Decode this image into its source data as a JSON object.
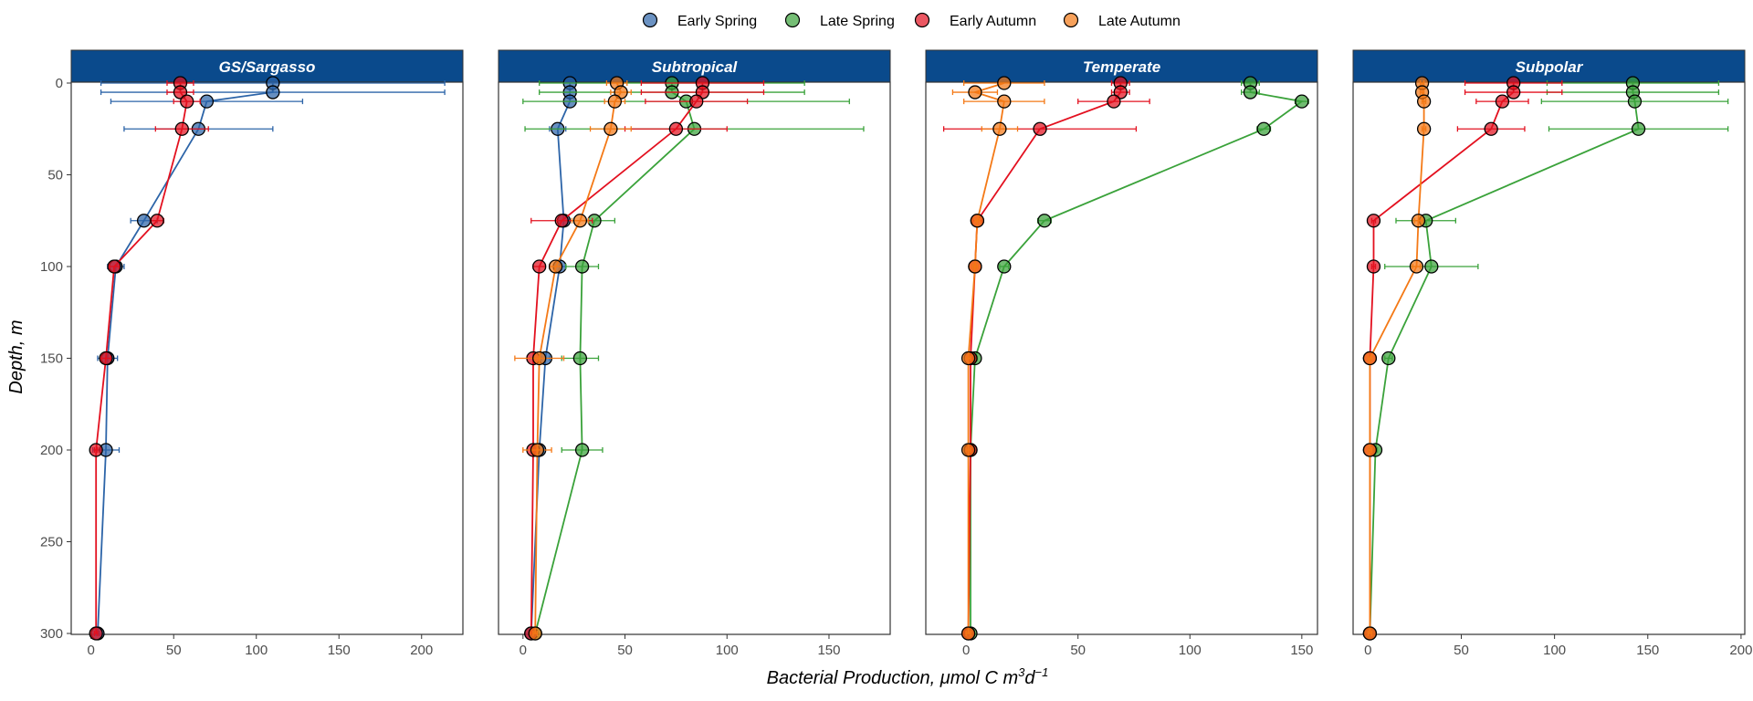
{
  "chart_data": {
    "type": "line",
    "xlabel": "Bacterial Production, μmol C m³d⁻¹",
    "xlabel_main": "Bacterial Production, μmol C m",
    "xlabel_sup1": "3",
    "xlabel_mid": "d",
    "xlabel_sup2": "−1",
    "ylabel": "Depth, m",
    "ylim": [
      0,
      300
    ],
    "y_reversed": true,
    "yticks": [
      0,
      50,
      100,
      150,
      200,
      250,
      300
    ],
    "legend": {
      "position": "top",
      "entries": [
        {
          "name": "Early Spring",
          "color": "#2c64a8"
        },
        {
          "name": "Late Spring",
          "color": "#3aa23a"
        },
        {
          "name": "Early Autumn",
          "color": "#e3101f"
        },
        {
          "name": "Late Autumn",
          "color": "#f47916"
        }
      ]
    },
    "panels": [
      {
        "title": "GS/Sargasso",
        "xlim": [
          -12,
          225
        ],
        "xticks": [
          0,
          50,
          100,
          150,
          200
        ],
        "series": [
          {
            "name": "Early Spring",
            "points": [
              {
                "y": 0,
                "x": 110,
                "err": 104
              },
              {
                "y": 5,
                "x": 110,
                "err": 104
              },
              {
                "y": 10,
                "x": 70,
                "err": 58
              },
              {
                "y": 25,
                "x": 65,
                "err": 45
              },
              {
                "y": 75,
                "x": 32,
                "err": 8
              },
              {
                "y": 100,
                "x": 15,
                "err": 5
              },
              {
                "y": 150,
                "x": 10,
                "err": 6
              },
              {
                "y": 200,
                "x": 9,
                "err": 8
              },
              {
                "y": 300,
                "x": 4,
                "err": 1
              }
            ]
          },
          {
            "name": "Early Autumn",
            "points": [
              {
                "y": 0,
                "x": 54,
                "err": 8
              },
              {
                "y": 5,
                "x": 54,
                "err": 8
              },
              {
                "y": 10,
                "x": 58,
                "err": 8
              },
              {
                "y": 25,
                "x": 55,
                "err": 16
              },
              {
                "y": 75,
                "x": 40,
                "err": 4
              },
              {
                "y": 100,
                "x": 14,
                "err": 3
              },
              {
                "y": 150,
                "x": 9,
                "err": 3
              },
              {
                "y": 200,
                "x": 3,
                "err": 1
              },
              {
                "y": 300,
                "x": 3,
                "err": 1
              }
            ]
          }
        ]
      },
      {
        "title": "Subtropical",
        "xlim": [
          -12,
          180
        ],
        "xticks": [
          0,
          50,
          100,
          150
        ],
        "series": [
          {
            "name": "Early Spring",
            "points": [
              {
                "y": 0,
                "x": 23,
                "err": 3
              },
              {
                "y": 5,
                "x": 23,
                "err": 3
              },
              {
                "y": 10,
                "x": 23,
                "err": 3
              },
              {
                "y": 25,
                "x": 17,
                "err": 4
              },
              {
                "y": 75,
                "x": 20,
                "err": 3
              },
              {
                "y": 100,
                "x": 18,
                "err": 3
              },
              {
                "y": 150,
                "x": 11,
                "err": 2
              },
              {
                "y": 200,
                "x": 8,
                "err": 2
              },
              {
                "y": 300,
                "x": 4,
                "err": 1
              }
            ]
          },
          {
            "name": "Late Spring",
            "points": [
              {
                "y": 0,
                "x": 73,
                "err": 65
              },
              {
                "y": 5,
                "x": 73,
                "err": 65
              },
              {
                "y": 10,
                "x": 80,
                "err": 80
              },
              {
                "y": 25,
                "x": 84,
                "err": 83
              },
              {
                "y": 75,
                "x": 35,
                "err": 10
              },
              {
                "y": 100,
                "x": 29,
                "err": 8
              },
              {
                "y": 150,
                "x": 28,
                "err": 9
              },
              {
                "y": 200,
                "x": 29,
                "err": 10
              },
              {
                "y": 300,
                "x": 6,
                "err": 1
              }
            ]
          },
          {
            "name": "Early Autumn",
            "points": [
              {
                "y": 0,
                "x": 88,
                "err": 30
              },
              {
                "y": 5,
                "x": 88,
                "err": 30
              },
              {
                "y": 10,
                "x": 85,
                "err": 25
              },
              {
                "y": 25,
                "x": 75,
                "err": 25
              },
              {
                "y": 75,
                "x": 19,
                "err": 15
              },
              {
                "y": 100,
                "x": 8,
                "err": 3
              },
              {
                "y": 150,
                "x": 5,
                "err": 3
              },
              {
                "y": 200,
                "x": 5,
                "err": 1
              },
              {
                "y": 300,
                "x": 4,
                "err": 1
              }
            ]
          },
          {
            "name": "Late Autumn",
            "points": [
              {
                "y": 0,
                "x": 46,
                "err": 5
              },
              {
                "y": 5,
                "x": 48,
                "err": 5
              },
              {
                "y": 10,
                "x": 45,
                "err": 5
              },
              {
                "y": 25,
                "x": 43,
                "err": 10
              },
              {
                "y": 75,
                "x": 28,
                "err": 4
              },
              {
                "y": 100,
                "x": 16,
                "err": 3
              },
              {
                "y": 150,
                "x": 8,
                "err": 12
              },
              {
                "y": 200,
                "x": 7,
                "err": 7
              },
              {
                "y": 300,
                "x": 6,
                "err": 1
              }
            ]
          }
        ]
      },
      {
        "title": "Temperate",
        "xlim": [
          -18,
          157
        ],
        "xticks": [
          0,
          50,
          100,
          150
        ],
        "series": [
          {
            "name": "Late Spring",
            "points": [
              {
                "y": 0,
                "x": 127,
                "err": 4
              },
              {
                "y": 5,
                "x": 127,
                "err": 4
              },
              {
                "y": 10,
                "x": 150,
                "err": 3
              },
              {
                "y": 25,
                "x": 133,
                "err": 3
              },
              {
                "y": 75,
                "x": 35,
                "err": 3
              },
              {
                "y": 100,
                "x": 17,
                "err": 2
              },
              {
                "y": 150,
                "x": 4,
                "err": 1
              },
              {
                "y": 200,
                "x": 2,
                "err": 1
              },
              {
                "y": 300,
                "x": 2,
                "err": 1
              }
            ]
          },
          {
            "name": "Early Autumn",
            "points": [
              {
                "y": 0,
                "x": 69,
                "err": 4
              },
              {
                "y": 5,
                "x": 69,
                "err": 4
              },
              {
                "y": 10,
                "x": 66,
                "err": 16
              },
              {
                "y": 25,
                "x": 33,
                "err": 43
              },
              {
                "y": 75,
                "x": 5,
                "err": 2
              },
              {
                "y": 100,
                "x": 4,
                "err": 1
              },
              {
                "y": 150,
                "x": 2,
                "err": 1
              },
              {
                "y": 200,
                "x": 2,
                "err": 1
              },
              {
                "y": 300,
                "x": 1,
                "err": 1
              }
            ]
          },
          {
            "name": "Late Autumn",
            "points": [
              {
                "y": 0,
                "x": 17,
                "err": 18
              },
              {
                "y": 5,
                "x": 4,
                "err": 10
              },
              {
                "y": 10,
                "x": 17,
                "err": 18
              },
              {
                "y": 25,
                "x": 15,
                "err": 8
              },
              {
                "y": 75,
                "x": 5,
                "err": 1
              },
              {
                "y": 100,
                "x": 4,
                "err": 1
              },
              {
                "y": 150,
                "x": 1,
                "err": 1
              },
              {
                "y": 200,
                "x": 1,
                "err": 1
              },
              {
                "y": 300,
                "x": 1,
                "err": 1
              }
            ]
          }
        ]
      },
      {
        "title": "Subpolar",
        "xlim": [
          -8,
          202
        ],
        "xticks": [
          0,
          50,
          100,
          150,
          200
        ],
        "series": [
          {
            "name": "Late Spring",
            "points": [
              {
                "y": 0,
                "x": 142,
                "err": 46
              },
              {
                "y": 5,
                "x": 142,
                "err": 46
              },
              {
                "y": 10,
                "x": 143,
                "err": 50
              },
              {
                "y": 25,
                "x": 145,
                "err": 48
              },
              {
                "y": 75,
                "x": 31,
                "err": 16
              },
              {
                "y": 100,
                "x": 34,
                "err": 25
              },
              {
                "y": 150,
                "x": 11,
                "err": 2
              },
              {
                "y": 200,
                "x": 4,
                "err": 1
              },
              {
                "y": 300,
                "x": 1,
                "err": 1
              }
            ]
          },
          {
            "name": "Early Autumn",
            "points": [
              {
                "y": 0,
                "x": 78,
                "err": 26
              },
              {
                "y": 5,
                "x": 78,
                "err": 26
              },
              {
                "y": 10,
                "x": 72,
                "err": 14
              },
              {
                "y": 25,
                "x": 66,
                "err": 18
              },
              {
                "y": 75,
                "x": 3,
                "err": 1
              },
              {
                "y": 100,
                "x": 3,
                "err": 1
              },
              {
                "y": 150,
                "x": 1,
                "err": 1
              },
              {
                "y": 200,
                "x": 1,
                "err": 1
              },
              {
                "y": 300,
                "x": 1,
                "err": 1
              }
            ]
          },
          {
            "name": "Late Autumn",
            "points": [
              {
                "y": 0,
                "x": 29,
                "err": 1
              },
              {
                "y": 5,
                "x": 29,
                "err": 1
              },
              {
                "y": 10,
                "x": 30,
                "err": 1
              },
              {
                "y": 25,
                "x": 30,
                "err": 1
              },
              {
                "y": 75,
                "x": 27,
                "err": 2
              },
              {
                "y": 100,
                "x": 26,
                "err": 2
              },
              {
                "y": 150,
                "x": 1,
                "err": 1
              },
              {
                "y": 200,
                "x": 1,
                "err": 1
              },
              {
                "y": 300,
                "x": 1,
                "err": 1
              }
            ]
          }
        ]
      }
    ]
  }
}
